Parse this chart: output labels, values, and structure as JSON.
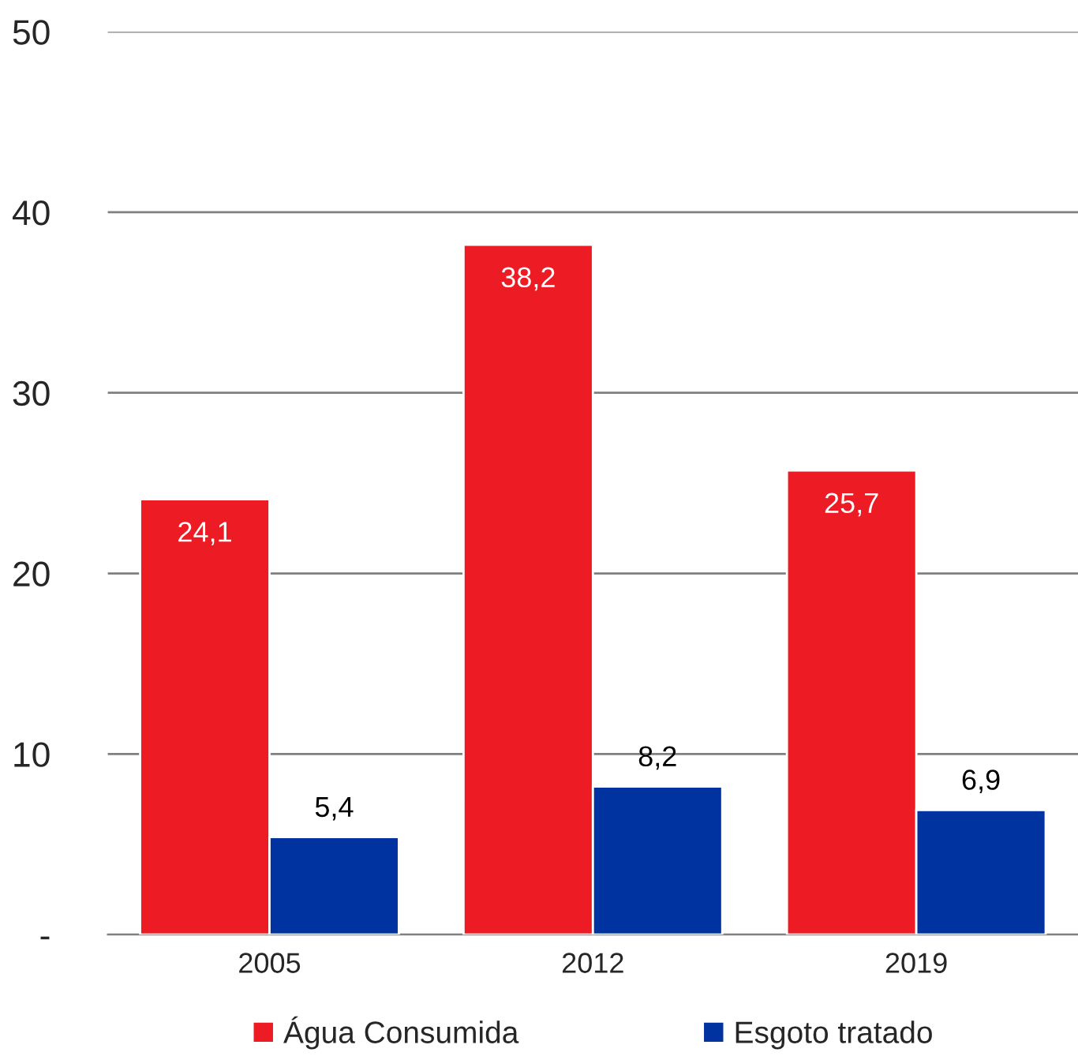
{
  "chart_data": {
    "type": "bar",
    "categories": [
      "2005",
      "2012",
      "2019"
    ],
    "series": [
      {
        "name": "Água Consumida",
        "color": "#ed1c24",
        "values": [
          24.1,
          38.2,
          25.7
        ],
        "value_labels": [
          "24,1",
          "38,2",
          "25,7"
        ]
      },
      {
        "name": "Esgoto tratado",
        "color": "#0033a0",
        "values": [
          5.4,
          8.2,
          6.9
        ],
        "value_labels": [
          "5,4",
          "8,2",
          "6,9"
        ]
      }
    ],
    "ylim": [
      0,
      50
    ],
    "yticks": [
      {
        "value": 0,
        "label": "-"
      },
      10,
      20,
      30,
      40,
      50
    ],
    "grid": "y",
    "legend": "bottom"
  }
}
